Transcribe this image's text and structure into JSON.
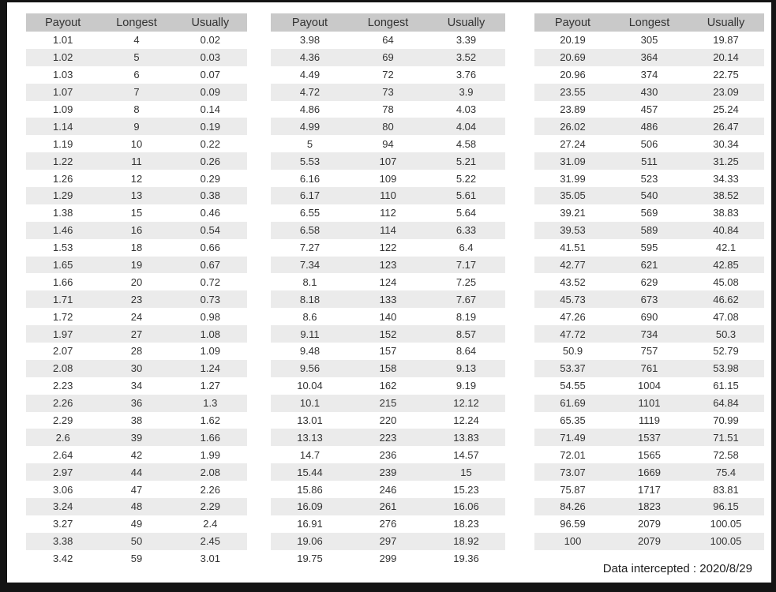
{
  "page": {
    "footer_text": "Data intercepted : 2020/8/29"
  },
  "colors": {
    "frame_color": "#141414",
    "page_bg": "#ffffff",
    "header_bg": "#c9c9c9",
    "stripe_bg": "#ebebeb",
    "text_color": "#333333",
    "footer_color": "#1f1f1f"
  },
  "columns": [
    "Payout",
    "Longest",
    "Usually"
  ],
  "tables": [
    {
      "name": "payout-table-low-range",
      "rows": [
        [
          "1.01",
          "4",
          "0.02"
        ],
        [
          "1.02",
          "5",
          "0.03"
        ],
        [
          "1.03",
          "6",
          "0.07"
        ],
        [
          "1.07",
          "7",
          "0.09"
        ],
        [
          "1.09",
          "8",
          "0.14"
        ],
        [
          "1.14",
          "9",
          "0.19"
        ],
        [
          "1.19",
          "10",
          "0.22"
        ],
        [
          "1.22",
          "11",
          "0.26"
        ],
        [
          "1.26",
          "12",
          "0.29"
        ],
        [
          "1.29",
          "13",
          "0.38"
        ],
        [
          "1.38",
          "15",
          "0.46"
        ],
        [
          "1.46",
          "16",
          "0.54"
        ],
        [
          "1.53",
          "18",
          "0.66"
        ],
        [
          "1.65",
          "19",
          "0.67"
        ],
        [
          "1.66",
          "20",
          "0.72"
        ],
        [
          "1.71",
          "23",
          "0.73"
        ],
        [
          "1.72",
          "24",
          "0.98"
        ],
        [
          "1.97",
          "27",
          "1.08"
        ],
        [
          "2.07",
          "28",
          "1.09"
        ],
        [
          "2.08",
          "30",
          "1.24"
        ],
        [
          "2.23",
          "34",
          "1.27"
        ],
        [
          "2.26",
          "36",
          "1.3"
        ],
        [
          "2.29",
          "38",
          "1.62"
        ],
        [
          "2.6",
          "39",
          "1.66"
        ],
        [
          "2.64",
          "42",
          "1.99"
        ],
        [
          "2.97",
          "44",
          "2.08"
        ],
        [
          "3.06",
          "47",
          "2.26"
        ],
        [
          "3.24",
          "48",
          "2.29"
        ],
        [
          "3.27",
          "49",
          "2.4"
        ],
        [
          "3.38",
          "50",
          "2.45"
        ],
        [
          "3.42",
          "59",
          "3.01"
        ]
      ]
    },
    {
      "name": "payout-table-mid-range",
      "rows": [
        [
          "3.98",
          "64",
          "3.39"
        ],
        [
          "4.36",
          "69",
          "3.52"
        ],
        [
          "4.49",
          "72",
          "3.76"
        ],
        [
          "4.72",
          "73",
          "3.9"
        ],
        [
          "4.86",
          "78",
          "4.03"
        ],
        [
          "4.99",
          "80",
          "4.04"
        ],
        [
          "5",
          "94",
          "4.58"
        ],
        [
          "5.53",
          "107",
          "5.21"
        ],
        [
          "6.16",
          "109",
          "5.22"
        ],
        [
          "6.17",
          "110",
          "5.61"
        ],
        [
          "6.55",
          "112",
          "5.64"
        ],
        [
          "6.58",
          "114",
          "6.33"
        ],
        [
          "7.27",
          "122",
          "6.4"
        ],
        [
          "7.34",
          "123",
          "7.17"
        ],
        [
          "8.1",
          "124",
          "7.25"
        ],
        [
          "8.18",
          "133",
          "7.67"
        ],
        [
          "8.6",
          "140",
          "8.19"
        ],
        [
          "9.11",
          "152",
          "8.57"
        ],
        [
          "9.48",
          "157",
          "8.64"
        ],
        [
          "9.56",
          "158",
          "9.13"
        ],
        [
          "10.04",
          "162",
          "9.19"
        ],
        [
          "10.1",
          "215",
          "12.12"
        ],
        [
          "13.01",
          "220",
          "12.24"
        ],
        [
          "13.13",
          "223",
          "13.83"
        ],
        [
          "14.7",
          "236",
          "14.57"
        ],
        [
          "15.44",
          "239",
          "15"
        ],
        [
          "15.86",
          "246",
          "15.23"
        ],
        [
          "16.09",
          "261",
          "16.06"
        ],
        [
          "16.91",
          "276",
          "18.23"
        ],
        [
          "19.06",
          "297",
          "18.92"
        ],
        [
          "19.75",
          "299",
          "19.36"
        ]
      ]
    },
    {
      "name": "payout-table-high-range",
      "rows": [
        [
          "20.19",
          "305",
          "19.87"
        ],
        [
          "20.69",
          "364",
          "20.14"
        ],
        [
          "20.96",
          "374",
          "22.75"
        ],
        [
          "23.55",
          "430",
          "23.09"
        ],
        [
          "23.89",
          "457",
          "25.24"
        ],
        [
          "26.02",
          "486",
          "26.47"
        ],
        [
          "27.24",
          "506",
          "30.34"
        ],
        [
          "31.09",
          "511",
          "31.25"
        ],
        [
          "31.99",
          "523",
          "34.33"
        ],
        [
          "35.05",
          "540",
          "38.52"
        ],
        [
          "39.21",
          "569",
          "38.83"
        ],
        [
          "39.53",
          "589",
          "40.84"
        ],
        [
          "41.51",
          "595",
          "42.1"
        ],
        [
          "42.77",
          "621",
          "42.85"
        ],
        [
          "43.52",
          "629",
          "45.08"
        ],
        [
          "45.73",
          "673",
          "46.62"
        ],
        [
          "47.26",
          "690",
          "47.08"
        ],
        [
          "47.72",
          "734",
          "50.3"
        ],
        [
          "50.9",
          "757",
          "52.79"
        ],
        [
          "53.37",
          "761",
          "53.98"
        ],
        [
          "54.55",
          "1004",
          "61.15"
        ],
        [
          "61.69",
          "1101",
          "64.84"
        ],
        [
          "65.35",
          "1119",
          "70.99"
        ],
        [
          "71.49",
          "1537",
          "71.51"
        ],
        [
          "72.01",
          "1565",
          "72.58"
        ],
        [
          "73.07",
          "1669",
          "75.4"
        ],
        [
          "75.87",
          "1717",
          "83.81"
        ],
        [
          "84.26",
          "1823",
          "96.15"
        ],
        [
          "96.59",
          "2079",
          "100.05"
        ],
        [
          "100",
          "2079",
          "100.05"
        ]
      ]
    }
  ]
}
